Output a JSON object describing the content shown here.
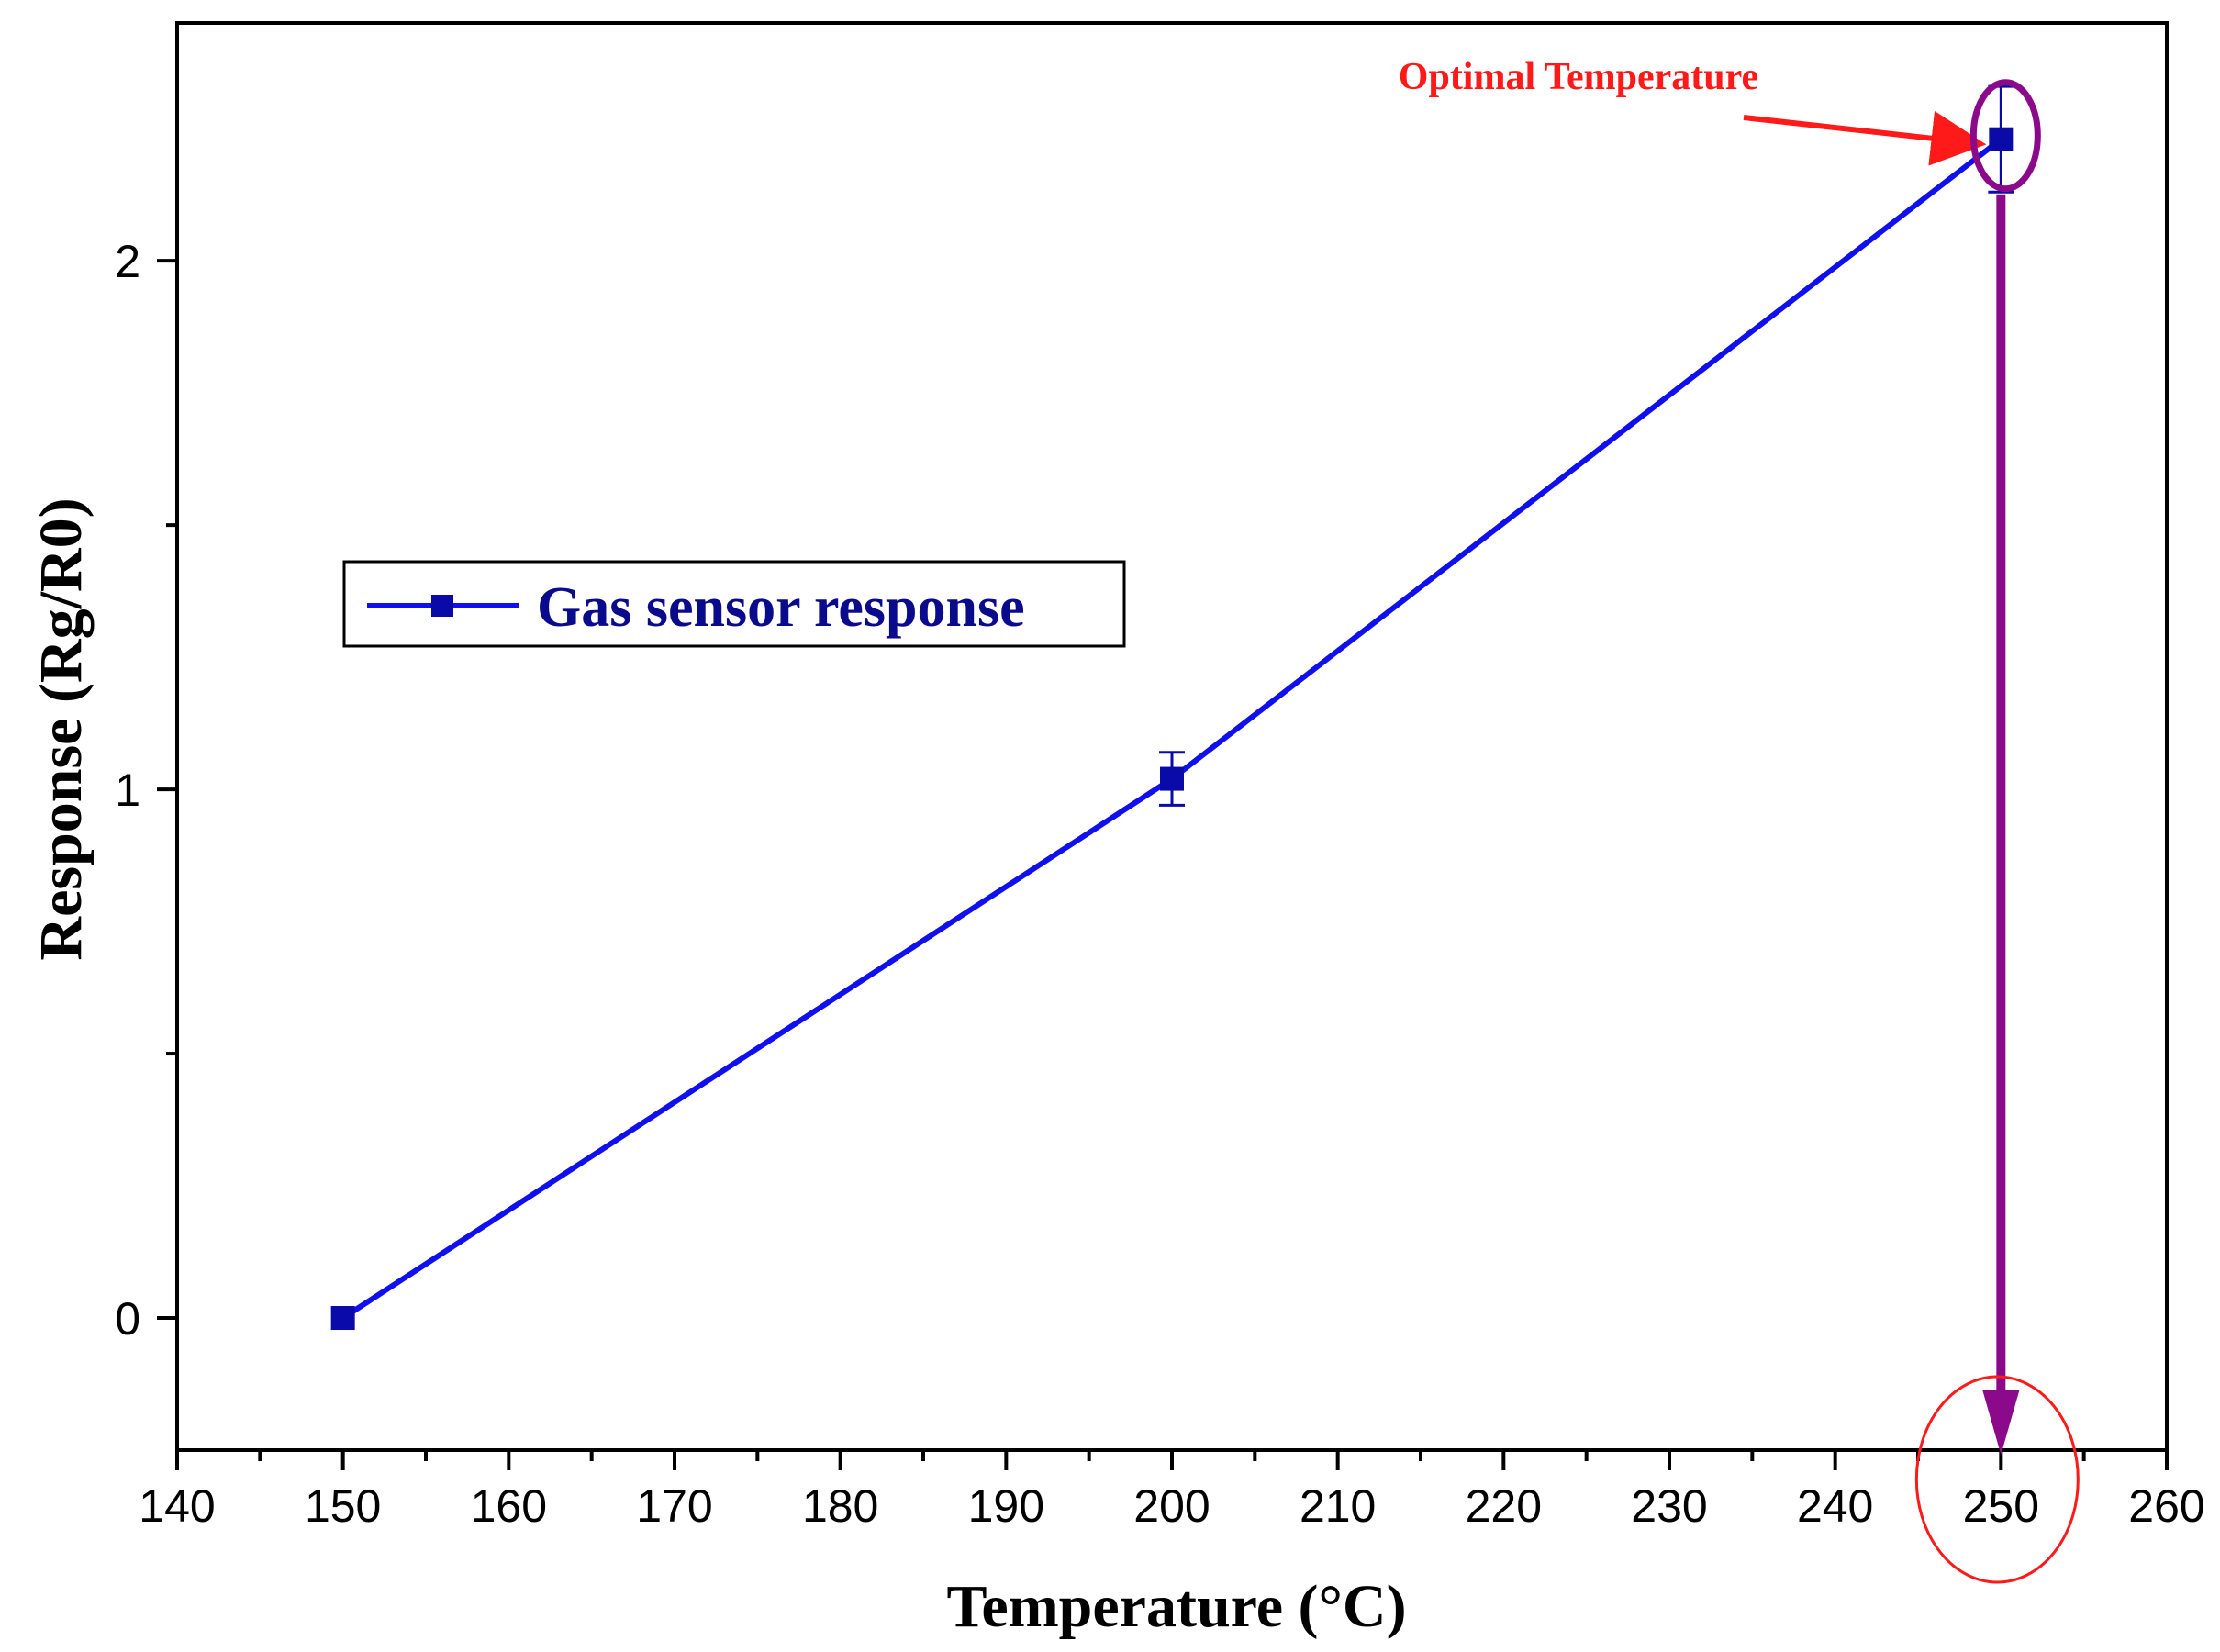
{
  "chart_data": {
    "type": "line",
    "title": "",
    "xlabel": "Temperature (°C)",
    "ylabel": "Response (Rg/R0)",
    "xlim": [
      140,
      260
    ],
    "ylim": [
      -0.25,
      2.45
    ],
    "x_ticks": [
      140,
      150,
      160,
      170,
      180,
      190,
      200,
      210,
      220,
      230,
      240,
      250,
      260
    ],
    "y_ticks": [
      0,
      1,
      2
    ],
    "grid": false,
    "legend": {
      "position": "center-left"
    },
    "series": [
      {
        "name": "Gas sensor response",
        "color": "#1010ee",
        "marker_color": "#0a0aa8",
        "x": [
          150,
          200,
          250
        ],
        "y": [
          0.0,
          1.02,
          2.23
        ],
        "error": [
          0.0,
          0.05,
          0.1
        ]
      }
    ],
    "annotations": [
      {
        "text": "Optimal Temperature",
        "color": "#ff1a1a",
        "target_x": 250,
        "target_y": 2.23
      }
    ],
    "highlight_color": "#8b0a8b",
    "circle_color": "#ff1a1a"
  }
}
